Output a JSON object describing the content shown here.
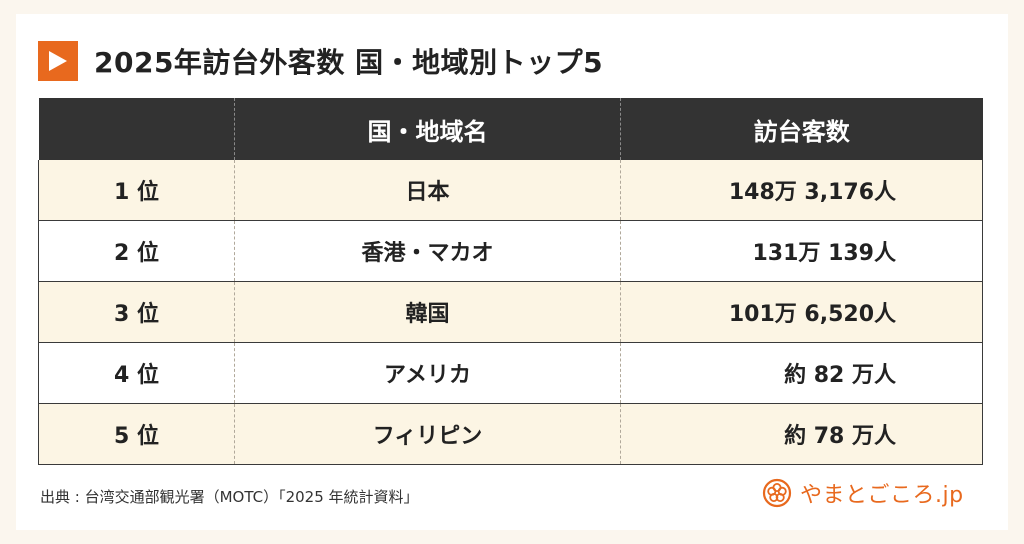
{
  "title": "2025年訪台外客数 国・地域別トップ5",
  "table": {
    "headers": [
      "",
      "国・地域名",
      "訪台客数"
    ],
    "rows": [
      {
        "rank": "1 位",
        "name": "日本",
        "visitors": "148万 3,176人"
      },
      {
        "rank": "2 位",
        "name": "香港・マカオ",
        "visitors": "131万 139人"
      },
      {
        "rank": "3 位",
        "name": "韓国",
        "visitors": "101万 6,520人"
      },
      {
        "rank": "4 位",
        "name": "アメリカ",
        "visitors": "約 82 万人"
      },
      {
        "rank": "5 位",
        "name": "フィリピン",
        "visitors": "約 78 万人"
      }
    ]
  },
  "source": "出典 : 台湾交通部観光署（MOTC）「2025 年統計資料」",
  "logo": {
    "text": "やまとごころ.jp",
    "icon": "yamatogokoro-flower-icon"
  },
  "colors": {
    "accent": "#e8691e",
    "header_bg": "#333333",
    "row_alt": "#fcf5e4",
    "page_bg": "#fbf6ee"
  }
}
